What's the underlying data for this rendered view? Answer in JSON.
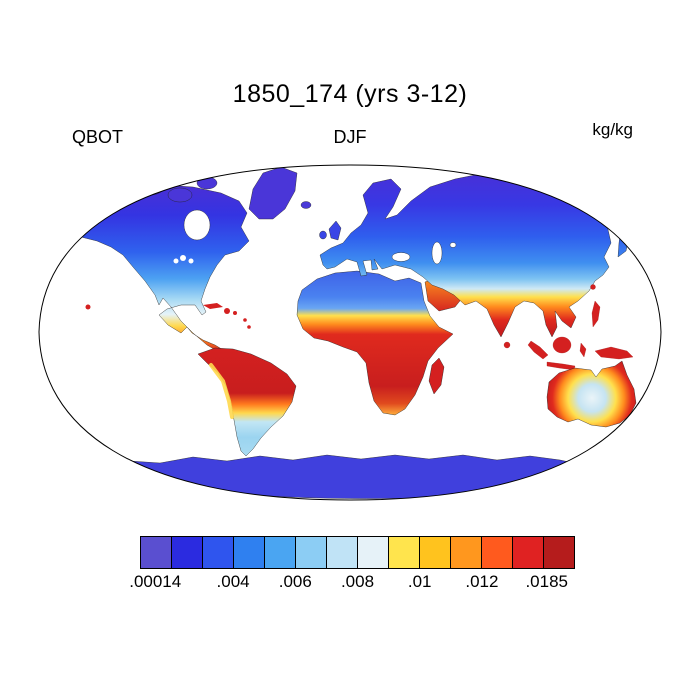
{
  "title": "1850_174 (yrs 3-12)",
  "header": {
    "variable": "QBOT",
    "season": "DJF",
    "units": "kg/kg"
  },
  "colorbar": {
    "colors": [
      "#5a4fd0",
      "#2b2be0",
      "#2f55ee",
      "#2f80f0",
      "#4aa5f2",
      "#8ccdf4",
      "#c0e3f6",
      "#e6f2f8",
      "#ffe44d",
      "#ffc31e",
      "#ff971e",
      "#ff5a1e",
      "#e02222",
      "#b51c1c"
    ],
    "ticks": [
      {
        "label": ".00014",
        "pos": 3.5
      },
      {
        "label": ".004",
        "pos": 21.4
      },
      {
        "label": ".006",
        "pos": 35.7
      },
      {
        "label": ".008",
        "pos": 50
      },
      {
        "label": ".01",
        "pos": 64.3
      },
      {
        "label": ".012",
        "pos": 78.6
      },
      {
        "label": ".0185",
        "pos": 93.5
      }
    ]
  },
  "chart_data": {
    "type": "heatmap",
    "title": "1850_174 (yrs 3-12)",
    "variable": "QBOT",
    "season": "DJF",
    "units": "kg/kg",
    "projection": "robinson-world-map",
    "value_range": [
      0.00014,
      0.0185
    ],
    "colorbar_tick_values": [
      0.00014,
      0.004,
      0.006,
      0.008,
      0.01,
      0.012,
      0.0185
    ],
    "palette": [
      "#5a4fd0",
      "#2b2be0",
      "#2f55ee",
      "#2f80f0",
      "#4aa5f2",
      "#8ccdf4",
      "#c0e3f6",
      "#e6f2f8",
      "#ffe44d",
      "#ffc31e",
      "#ff971e",
      "#ff5a1e",
      "#e02222",
      "#b51c1c"
    ],
    "legend_position": "bottom",
    "region_values_estimated": [
      {
        "region": "Arctic coast / northern Siberia / northern Canada / Greenland",
        "approx_value": 0.001
      },
      {
        "region": "Mid-latitude Eurasia and Europe",
        "approx_value": 0.003
      },
      {
        "region": "Northern United States / southern Canada",
        "approx_value": 0.004
      },
      {
        "region": "Southern United States / Gulf coast",
        "approx_value": 0.008
      },
      {
        "region": "Sahara",
        "approx_value": 0.004
      },
      {
        "region": "Mexico / Central America / Caribbean",
        "approx_value": 0.015
      },
      {
        "region": "Amazon / tropical South America",
        "approx_value": 0.018
      },
      {
        "region": "Tropical Africa (Sahel to Congo)",
        "approx_value": 0.017
      },
      {
        "region": "Arabia / Middle East",
        "approx_value": 0.013
      },
      {
        "region": "India / Southeast Asia / Indonesia / New Guinea",
        "approx_value": 0.017
      },
      {
        "region": "Northern Australia coasts",
        "approx_value": 0.015
      },
      {
        "region": "Central Australia interior",
        "approx_value": 0.007
      },
      {
        "region": "Southern South America (Patagonia)",
        "approx_value": 0.006
      },
      {
        "region": "Antarctica",
        "approx_value": 0.001
      }
    ]
  }
}
